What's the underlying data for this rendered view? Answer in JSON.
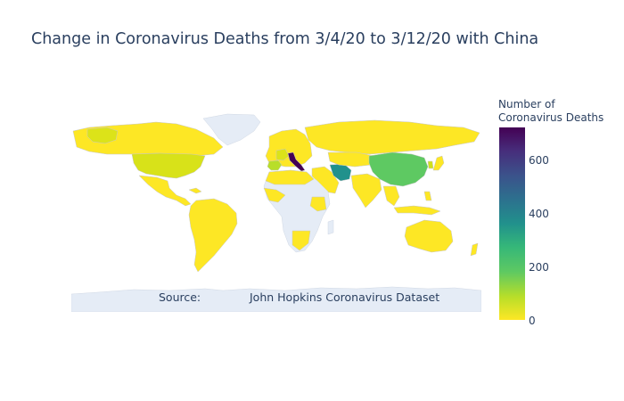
{
  "title": "Change in Coronavirus Deaths from 3/4/20 to 3/12/20 with China",
  "annotation": {
    "source_label": "Source:",
    "source_text": "John Hopkins Coronavirus Dataset"
  },
  "colorbar": {
    "title_line1": "Number of",
    "title_line2": "Coronavirus Deaths",
    "ticks": [
      "0",
      "200",
      "400",
      "600"
    ],
    "colorscale": "Viridis (reversed)",
    "range": [
      0,
      714
    ]
  },
  "colors": {
    "land_no_data": "#e5ecf6",
    "low": "#fde725",
    "high": "#440154",
    "border": "#c8c8c8"
  },
  "chart_data": {
    "type": "choropleth",
    "metric": "Number of Coronavirus Deaths",
    "regions": [
      {
        "name": "Italy",
        "value": 690
      },
      {
        "name": "Iran",
        "value": 350
      },
      {
        "name": "China",
        "value": 180
      },
      {
        "name": "South Korea",
        "value": 31
      },
      {
        "name": "United States",
        "value": 30
      },
      {
        "name": "France",
        "value": 40
      },
      {
        "name": "Spain",
        "value": 70
      },
      {
        "name": "Japan",
        "value": 10
      }
    ]
  }
}
